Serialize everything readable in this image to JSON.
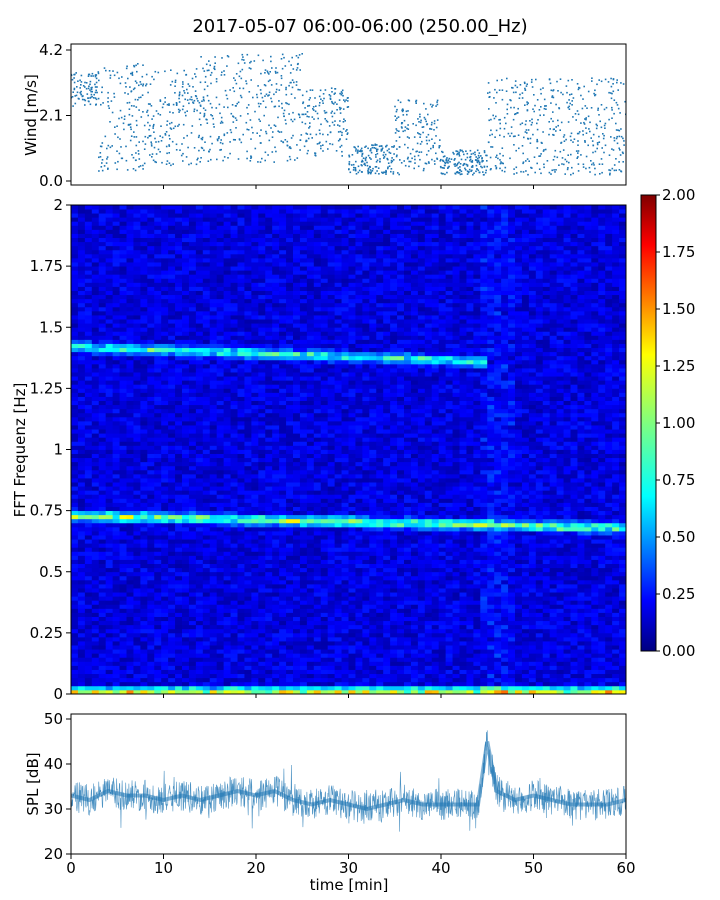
{
  "chart_data": [
    {
      "type": "scatter",
      "ylabel": "Wind [m/s]",
      "xlim": [
        0,
        60
      ],
      "ylim": [
        0,
        4.2
      ],
      "yticks": [
        "0.0",
        "2.1",
        "4.2"
      ],
      "color": "#1f77b4",
      "segments": [
        {
          "x": [
            0,
            3
          ],
          "y_range": [
            2.4,
            3.5
          ]
        },
        {
          "x": [
            3,
            8
          ],
          "y_range": [
            0.3,
            3.8
          ]
        },
        {
          "x": [
            8,
            14
          ],
          "y_range": [
            0.5,
            3.6
          ]
        },
        {
          "x": [
            14,
            25
          ],
          "y_range": [
            0.6,
            4.1
          ]
        },
        {
          "x": [
            25,
            30
          ],
          "y_range": [
            0.8,
            3.0
          ]
        },
        {
          "x": [
            30,
            35
          ],
          "y_range": [
            0.2,
            1.2
          ]
        },
        {
          "x": [
            35,
            40
          ],
          "y_range": [
            0.2,
            2.6
          ]
        },
        {
          "x": [
            40,
            45
          ],
          "y_range": [
            0.2,
            1.0
          ]
        },
        {
          "x": [
            45,
            60
          ],
          "y_range": [
            0.2,
            3.3
          ]
        }
      ]
    },
    {
      "type": "heatmap",
      "title": "2017-05-07 06:00-06:00 (250.00_Hz)",
      "ylabel": "FFT Frequenz [Hz]",
      "xlim": [
        0,
        60
      ],
      "ylim": [
        0,
        2
      ],
      "yticks": [
        "0",
        "0.25",
        "0.5",
        "0.75",
        "1",
        "1.25",
        "1.5",
        "1.75",
        "2"
      ],
      "colorbar": {
        "range": [
          0,
          2
        ],
        "ticks": [
          "0.00",
          "0.25",
          "0.50",
          "0.75",
          "1.00",
          "1.25",
          "1.50",
          "1.75",
          "2.00"
        ],
        "colormap": "jet"
      },
      "bands": [
        {
          "label": "band-0.7Hz",
          "x": [
            0,
            60
          ],
          "f": [
            0.73,
            0.68
          ],
          "level": 1.0
        },
        {
          "label": "band-1.4Hz",
          "x": [
            0,
            45
          ],
          "f": [
            1.42,
            1.36
          ],
          "level": 0.8
        },
        {
          "label": "band-0Hz",
          "x": [
            0,
            60
          ],
          "f": [
            0.01,
            0.01
          ],
          "level": 1.2
        }
      ]
    },
    {
      "type": "line",
      "xlabel": "time [min]",
      "ylabel": "SPL [dB]",
      "xlim": [
        0,
        60
      ],
      "ylim": [
        20,
        50
      ],
      "xticks": [
        "0",
        "10",
        "20",
        "30",
        "40",
        "50",
        "60"
      ],
      "yticks": [
        "20",
        "30",
        "40",
        "50"
      ],
      "color": "#1f77b4",
      "series": [
        {
          "x": [
            0,
            2,
            4,
            6,
            8,
            10,
            12,
            14,
            16,
            18,
            20,
            22,
            24,
            26,
            28,
            30,
            32,
            34,
            36,
            38,
            40,
            42,
            44,
            45,
            46,
            48,
            50,
            52,
            54,
            56,
            58,
            60
          ],
          "y": [
            33,
            32,
            34,
            33,
            33,
            32,
            33,
            32,
            33,
            34,
            33,
            34,
            32,
            31,
            32,
            31,
            30,
            31,
            32,
            31,
            31,
            31,
            31,
            45,
            34,
            32,
            33,
            32,
            31,
            31,
            31,
            32
          ]
        }
      ]
    }
  ]
}
